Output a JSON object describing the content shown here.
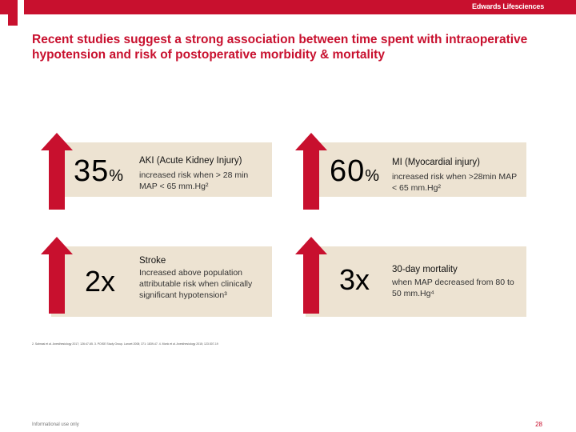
{
  "header": {
    "brand": "Edwards Lifesciences"
  },
  "title": "Recent studies suggest a strong association between time spent with intraoperative hypotension and risk of postoperative morbidity & mortality",
  "colors": {
    "accent": "#c8102e",
    "card_bg": "#ede3d2"
  },
  "stats": [
    {
      "number": "35",
      "suffix": "%",
      "title": "AKI (Acute Kidney Injury)",
      "desc": "increased risk when > 28 min MAP < 65 mm.Hg²"
    },
    {
      "number": "60",
      "suffix": "%",
      "title": "MI (Myocardial injury)",
      "desc": "increased risk when >28min MAP < 65 mm.Hg²"
    },
    {
      "number": "2x",
      "suffix": "",
      "title": "Stroke",
      "desc": "Increased above population attributable risk when clinically significant hypotension³"
    },
    {
      "number": "3x",
      "suffix": "",
      "title": "30-day mortality",
      "desc": "when MAP decreased from 80 to 50 mm.Hg⁴"
    }
  ],
  "references": "2. Salmasi et al. Anesthesiology 2017; 126:47-65. 3. POISE Study Group. Lancet 2008; 371: 1839-47. 4. Monk et al. Anesthesiology 2015; 123:307-19",
  "footer": {
    "left_text": "Informational use only",
    "page_number": "28"
  }
}
